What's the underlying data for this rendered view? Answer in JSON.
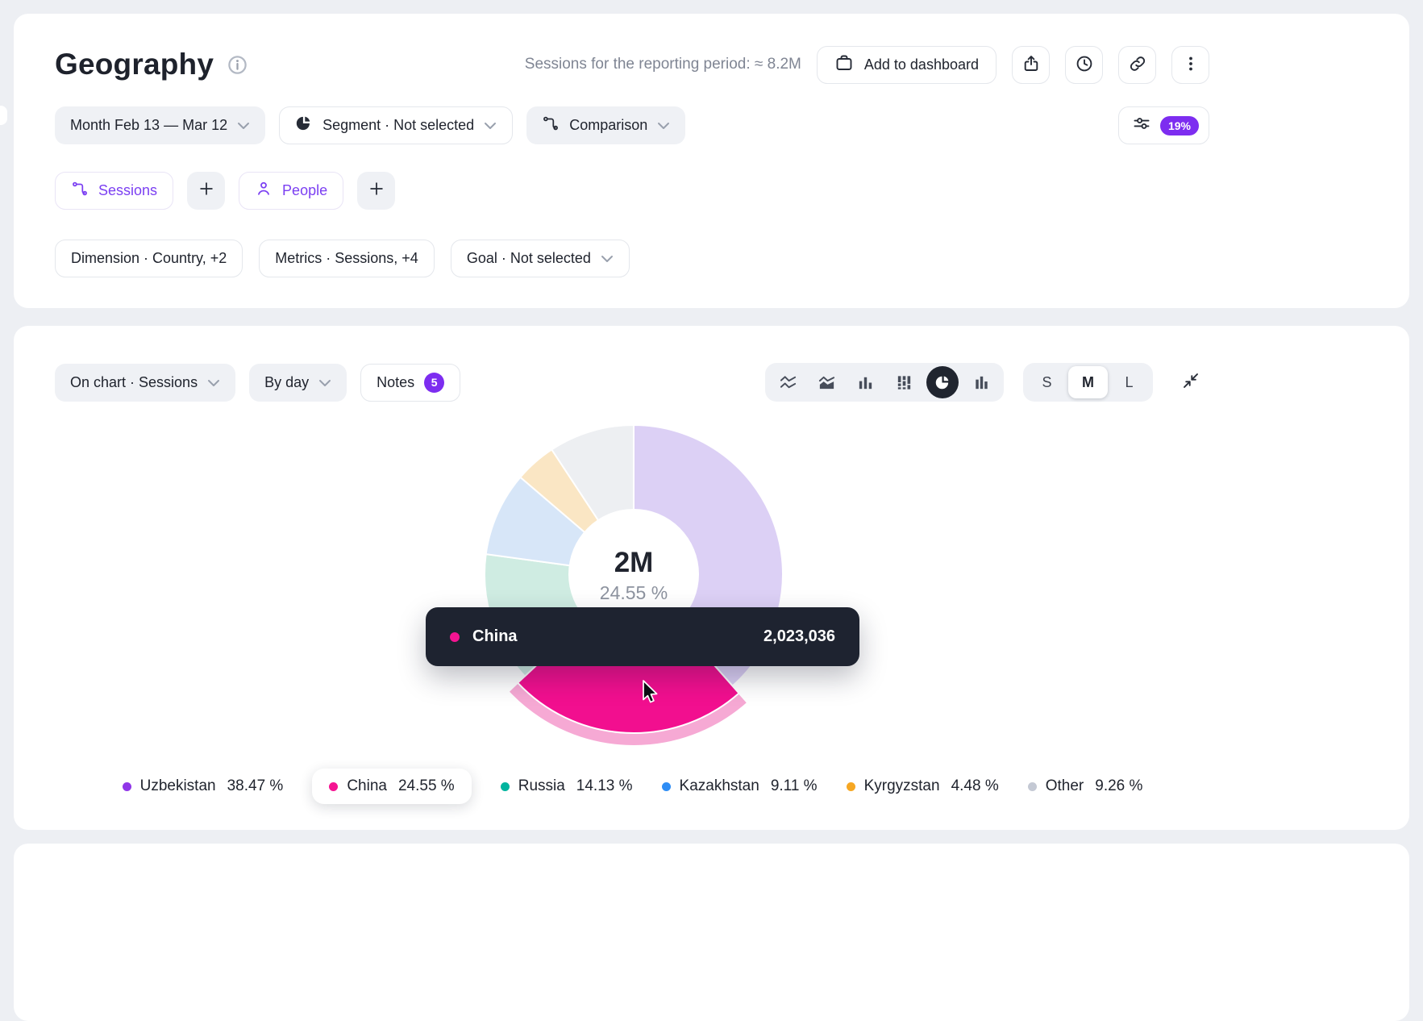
{
  "header": {
    "title": "Geography",
    "summary": "Sessions for the reporting period: ≈ 8.2M",
    "add_to_dashboard_label": "Add to dashboard",
    "period_chip": "Month Feb 13 — Mar 12",
    "segment_chip": "Segment · Not selected",
    "comparison_chip": "Comparison",
    "sampling_badge": "19%",
    "sessions_chip": "Sessions",
    "people_chip": "People",
    "dimension_chip": "Dimension · Country, +2",
    "metrics_chip": "Metrics · Sessions, +4",
    "goal_chip": "Goal · Not selected"
  },
  "toolbar": {
    "on_chart_chip": "On chart · Sessions",
    "by_day_chip": "By day",
    "notes_label": "Notes",
    "notes_count": "5",
    "sizes": [
      "S",
      "M",
      "L"
    ],
    "active_size": "M"
  },
  "donut": {
    "center_value": "2M",
    "center_percent": "24.55 %"
  },
  "tooltip": {
    "label": "China",
    "value": "2,023,036",
    "dot_color": "#f51492"
  },
  "legend": [
    {
      "label": "Uzbekistan",
      "percent": "38.47 %",
      "color": "#9036e8"
    },
    {
      "label": "China",
      "percent": "24.55 %",
      "color": "#f51492"
    },
    {
      "label": "Russia",
      "percent": "14.13 %",
      "color": "#00b49e"
    },
    {
      "label": "Kazakhstan",
      "percent": "9.11 %",
      "color": "#2e8df5"
    },
    {
      "label": "Kyrgyzstan",
      "percent": "4.48 %",
      "color": "#f6a723"
    },
    {
      "label": "Other",
      "percent": "9.26 %",
      "color": "#c4c9d4"
    }
  ],
  "chart_data": {
    "type": "pie",
    "categories": [
      "Uzbekistan",
      "China",
      "Russia",
      "Kazakhstan",
      "Kyrgyzstan",
      "Other"
    ],
    "values": [
      38.47,
      24.55,
      14.13,
      9.11,
      4.48,
      9.26
    ],
    "unit": "%",
    "donut_hole": true,
    "start_angle_deg": 0,
    "clockwise": true,
    "legend_position": "bottom",
    "center_label": {
      "value": "2M",
      "percent": "24.55 %"
    },
    "highlighted_slice": {
      "category": "China",
      "sessions": 2023036,
      "percent": 24.55,
      "sessions_label": "2,023,036"
    },
    "slice_colors": [
      "#dcd0f5",
      "#f20f8f",
      "#cfece2",
      "#d7e6f8",
      "#fae6c4",
      "#edeff2"
    ],
    "halo_color": "#f6a9d4",
    "legend_colors": [
      "#9036e8",
      "#f51492",
      "#00b49e",
      "#2e8df5",
      "#f6a723",
      "#c4c9d4"
    ]
  }
}
